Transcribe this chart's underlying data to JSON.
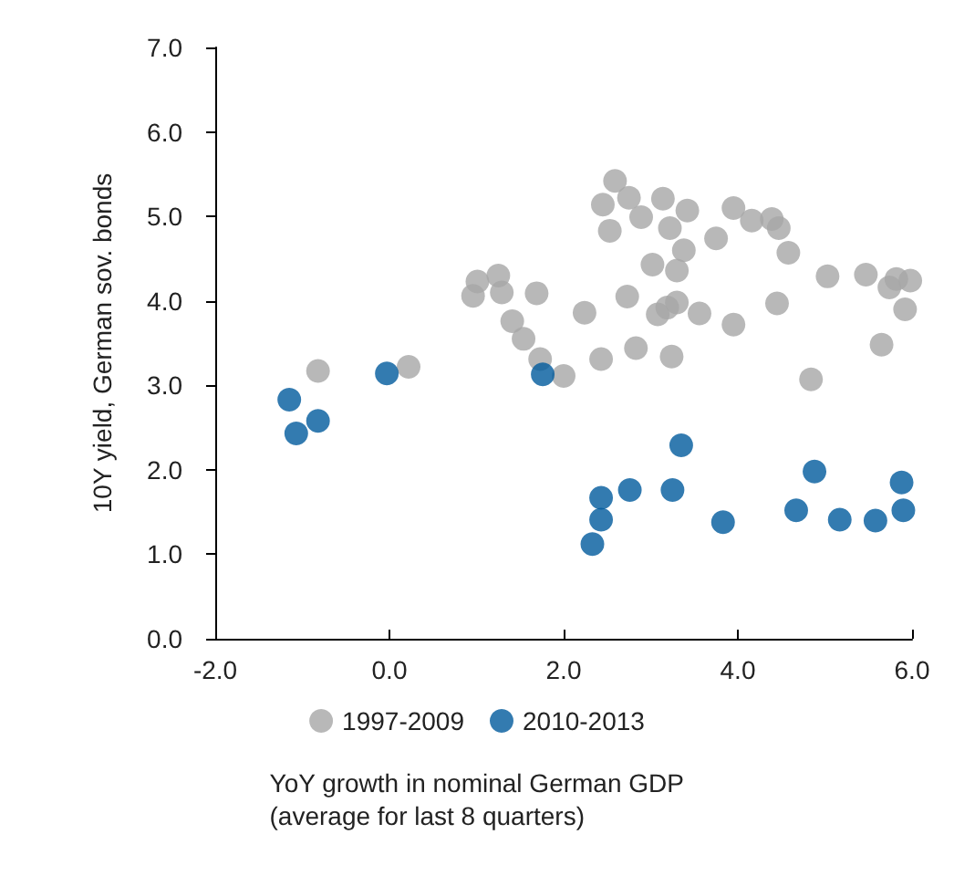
{
  "chart_data": {
    "type": "scatter",
    "xlabel": "YoY growth in nominal German GDP\n(average for last 8 quarters)",
    "ylabel": "10Y yield, German sov. bonds",
    "xlim": [
      -2,
      6
    ],
    "xticks": [
      {
        "value": -2,
        "label": "-2.0"
      },
      {
        "value": 0,
        "label": "0.0"
      },
      {
        "value": 2,
        "label": "2.0"
      },
      {
        "value": 4,
        "label": "4.0"
      },
      {
        "value": 6,
        "label": "6.0"
      }
    ],
    "ylim": [
      0,
      7
    ],
    "yticks": [
      {
        "value": 0,
        "label": "0.0"
      },
      {
        "value": 1,
        "label": "1.0"
      },
      {
        "value": 2,
        "label": "2.0"
      },
      {
        "value": 3,
        "label": "3.0"
      },
      {
        "value": 4,
        "label": "4.0"
      },
      {
        "value": 5,
        "label": "5.0"
      },
      {
        "value": 6,
        "label": "6.0"
      },
      {
        "value": 7,
        "label": "7.0"
      }
    ],
    "grid": false,
    "legend": "bottom",
    "marker": "circle",
    "series": [
      {
        "name": "1997-2009",
        "color": "#a6a6a6",
        "x": [
          1.01,
          1.25,
          0.96,
          1.29,
          1.69,
          1.41,
          1.54,
          1.73,
          2.0,
          -0.82,
          0.22,
          2.59,
          2.45,
          2.75,
          3.14,
          3.42,
          2.89,
          2.53,
          3.22,
          3.95,
          4.16,
          4.39,
          4.47,
          3.75,
          3.38,
          4.58,
          3.02,
          3.3,
          5.03,
          5.47,
          5.74,
          5.82,
          5.98,
          5.92,
          2.24,
          2.73,
          3.08,
          3.19,
          3.3,
          3.56,
          4.45,
          3.95,
          2.83,
          2.43,
          3.24,
          5.65,
          4.84
        ],
        "values": [
          4.23,
          4.3,
          4.06,
          4.1,
          4.09,
          3.76,
          3.55,
          3.31,
          3.11,
          3.17,
          3.22,
          5.42,
          5.14,
          5.22,
          5.21,
          5.07,
          4.99,
          4.83,
          4.86,
          5.1,
          4.95,
          4.97,
          4.86,
          4.74,
          4.6,
          4.57,
          4.43,
          4.36,
          4.29,
          4.31,
          4.16,
          4.26,
          4.24,
          3.9,
          3.86,
          4.05,
          3.84,
          3.92,
          3.98,
          3.85,
          3.97,
          3.72,
          3.44,
          3.31,
          3.34,
          3.48,
          3.07
        ]
      },
      {
        "name": "2010-2013",
        "color": "#005a9c",
        "x": [
          -1.15,
          -1.07,
          -0.82,
          -0.03,
          1.76,
          3.35,
          2.43,
          2.43,
          2.33,
          2.76,
          3.25,
          3.83,
          4.67,
          4.88,
          5.17,
          5.58,
          5.88,
          5.9
        ],
        "values": [
          2.83,
          2.43,
          2.58,
          3.14,
          3.13,
          2.29,
          1.67,
          1.41,
          1.12,
          1.76,
          1.76,
          1.38,
          1.52,
          1.98,
          1.41,
          1.4,
          1.85,
          1.52
        ]
      }
    ]
  }
}
